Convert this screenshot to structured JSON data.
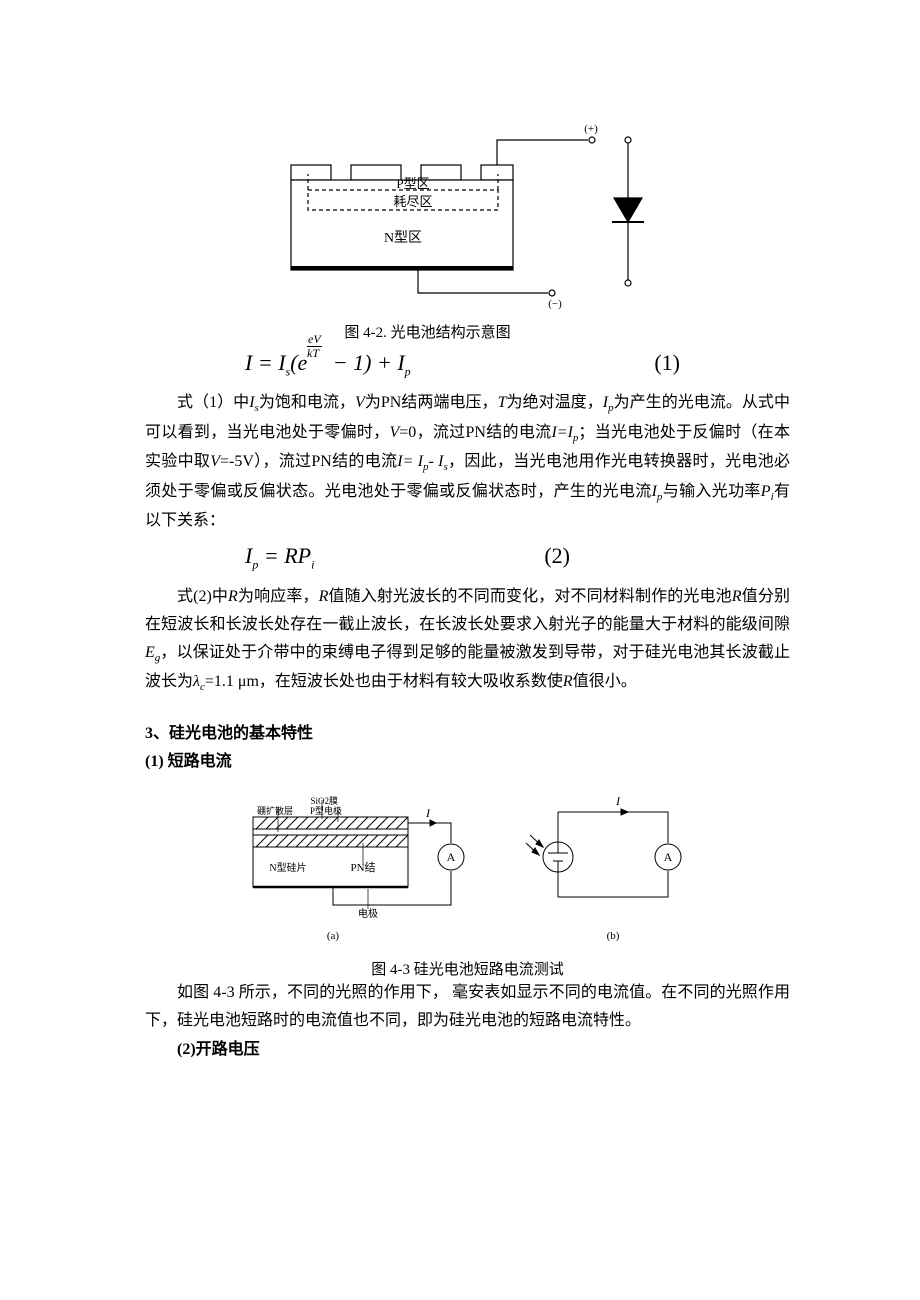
{
  "figure1": {
    "caption": "图 4-2. 光电池结构示意图",
    "labels": {
      "p_region": "P型区",
      "depletion": "耗尽区",
      "n_region": "N型区",
      "plus": "(+)",
      "minus": "(−)"
    },
    "colors": {
      "stroke": "#000000",
      "fill": "#ffffff",
      "dash_pattern": "4,3"
    },
    "line_width": 1.2,
    "font_size_label": 13,
    "font_size_pm": 11
  },
  "equation1": {
    "text_html": "I = I<sub>s</sub>(e<sup style=\"font-size:12px;\">eV/kT</sup> − 1) + I<sub>p</sub>",
    "number": "(1)"
  },
  "paragraph1_html": "式（1）中<i>I<sub>s</sub></i>为饱和电流，<i>V</i>为PN结两端电压，<i>T</i>为绝对温度，<i>I<sub>p</sub></i>为产生的光电流。从式中可以看到，当光电池处于零偏时，<i>V</i>=0，流过PN结的电流<i>I=I<sub>p</sub></i>；当光电池处于反偏时（在本实验中取<i>V</i>=-5V），流过PN结的电流<i>I= I<sub>p</sub>- I<sub>s</sub></i>，因此，当光电池用作光电转换器时，光电池必须处于零偏或反偏状态。光电池处于零偏或反偏状态时，产生的光电流<i>I<sub>p</sub></i>与输入光功率<i>P<sub>i</sub></i>有以下关系：",
  "equation2": {
    "text_html": "I<sub>p</sub> = RP<sub>i</sub>",
    "number": "(2)"
  },
  "paragraph2_html": "式(2)中<i>R</i>为响应率，<i>R</i>值随入射光波长的不同而变化，对不同材料制作的光电池<i>R</i>值分别在短波长和长波长处存在一截止波长，在长波长处要求入射光子的能量大于材料的能级间隙<i>E<sub>g</sub></i>，以保证处于介带中的束缚电子得到足够的能量被激发到导带，对于硅光电池其长波截止波长为<i>λ<sub>c</sub></i>=1.1 μm，在短波长处也由于材料有较大吸收系数使<i>R</i>值很小。",
  "section3": {
    "heading": "3、硅光电池的基本特性",
    "sub1": "(1) 短路电流"
  },
  "figure2": {
    "caption": "图 4-3  硅光电池短路电流测试",
    "labels": {
      "sio2": "SiO2膜",
      "boron": "硼扩散层",
      "p_electrode": "P型电极",
      "n_wafer": "N型硅片",
      "pn": "PN结",
      "electrode": "电极",
      "I": "I",
      "A": "A",
      "a": "(a)",
      "b": "(b)"
    },
    "colors": {
      "stroke": "#000000"
    },
    "line_width": 1.0,
    "font_size_small": 9,
    "font_size_label": 12
  },
  "paragraph3_html": "如图 4-3 所示，不同的光照的作用下，  毫安表如显示不同的电流值。在不同的光照作用下，硅光电池短路时的电流值也不同，即为硅光电池的短路电流特性。",
  "sub2": "(2)开路电压",
  "page_style": {
    "background_color": "#ffffff",
    "text_color": "#000000",
    "body_fontsize": 16,
    "caption_fontsize": 15,
    "line_height": 1.75
  }
}
